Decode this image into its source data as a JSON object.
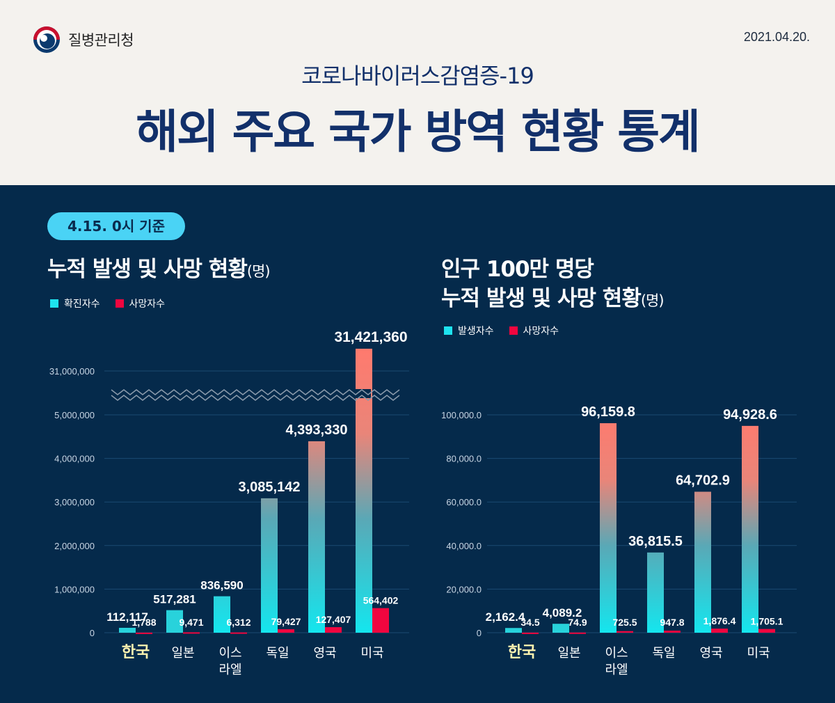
{
  "header": {
    "agency": "질병관리청",
    "date": "2021.04.20.",
    "subtitle": "코로나바이러스감염증-19",
    "title": "해외 주요 국가 방역 현황 통계"
  },
  "badge": "4.15. 0시 기준",
  "left_section": {
    "title": "누적 발생 및 사망 현황",
    "unit": "(명)",
    "legend": [
      {
        "label": "확진자수",
        "color": "#1ee3ef"
      },
      {
        "label": "사망자수",
        "color": "#f0063f"
      }
    ]
  },
  "right_section": {
    "title_line1": "인구 100만 명당",
    "title_line2": "누적 발생 및 사망 현황",
    "unit": "(명)",
    "legend": [
      {
        "label": "발생자수",
        "color": "#1ee3ef"
      },
      {
        "label": "사망자수",
        "color": "#f0063f"
      }
    ]
  },
  "colors": {
    "background": "#052a4b",
    "header_bg": "#f4f2ee",
    "title": "#12306a",
    "badge": "#4ad3f5",
    "cyan": "#1ee3ef",
    "salmon": "#ff7a6e",
    "red": "#f0063f",
    "korea_label": "#fff3b0"
  },
  "chart_data": [
    {
      "type": "bar",
      "title": "누적 발생 및 사망 현황(명)",
      "categories": [
        "한국",
        "일본",
        "이스\n라엘",
        "독일",
        "영국",
        "미국"
      ],
      "highlight_category": "한국",
      "series": [
        {
          "name": "확진자수",
          "values": [
            112117,
            517281,
            836590,
            3085142,
            4393330,
            31421360
          ],
          "labels": [
            "112,117",
            "517,281",
            "836,590",
            "3,085,142",
            "4,393,330",
            "31,421,360"
          ]
        },
        {
          "name": "사망자수",
          "values": [
            1788,
            9471,
            6312,
            79427,
            127407,
            564402
          ],
          "labels": [
            "1,788",
            "9,471",
            "6,312",
            "79,427",
            "127,407",
            "564,402"
          ]
        }
      ],
      "yticks": [
        "0",
        "1,000,000",
        "2,000,000",
        "3,000,000",
        "4,000,000",
        "5,000,000",
        "31,000,000"
      ],
      "ylim": [
        0,
        5000000
      ],
      "axis_break": "between 5,000,000 and 31,000,000",
      "grid": true,
      "legend": "top-left"
    },
    {
      "type": "bar",
      "title": "인구 100만 명당 누적 발생 및 사망 현황(명)",
      "categories": [
        "한국",
        "일본",
        "이스\n라엘",
        "독일",
        "영국",
        "미국"
      ],
      "highlight_category": "한국",
      "series": [
        {
          "name": "발생자수",
          "values": [
            2162.4,
            4089.2,
            96159.8,
            36815.5,
            64702.9,
            94928.6
          ],
          "labels": [
            "2,162.4",
            "4,089.2",
            "96,159.8",
            "36,815.5",
            "64,702.9",
            "94,928.6"
          ]
        },
        {
          "name": "사망자수",
          "values": [
            34.5,
            74.9,
            725.5,
            947.8,
            1876.4,
            1705.1
          ],
          "labels": [
            "34.5",
            "74.9",
            "725.5",
            "947.8",
            "1,876.4",
            "1,705.1"
          ]
        }
      ],
      "yticks": [
        "0",
        "20,000.0",
        "40,000.0",
        "60,000.0",
        "80,000.0",
        "100,000.0"
      ],
      "ylim": [
        0,
        100000
      ],
      "grid": true,
      "legend": "top-left"
    }
  ]
}
